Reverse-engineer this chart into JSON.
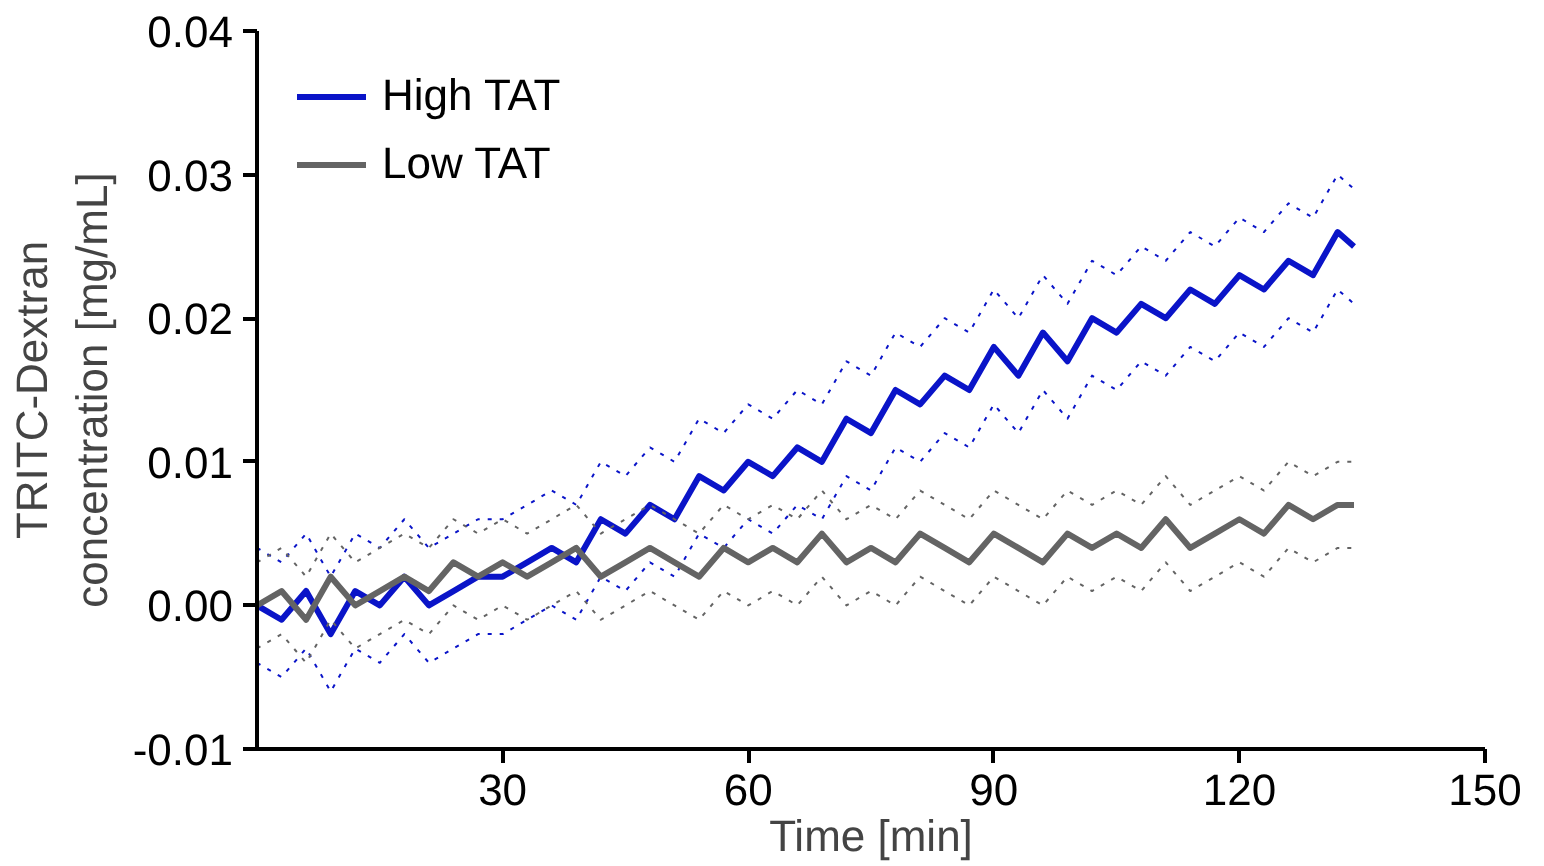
{
  "chart_data": {
    "type": "line",
    "xlabel": "Time [min]",
    "ylabel": "TRITC-Dextran\nconcentration [mg/mL]",
    "xlim": [
      0,
      150
    ],
    "xticks": [
      30,
      60,
      90,
      120,
      150
    ],
    "ylim": [
      -0.01,
      0.04
    ],
    "yticks": [
      {
        "value": -0.01,
        "label": "-0.01"
      },
      {
        "value": 0,
        "label": "0.00"
      },
      0.01,
      0.02,
      0.03,
      0.04
    ],
    "grid": false,
    "legend": "top left",
    "line_style": "solid",
    "marker": "none",
    "x": [
      0,
      3,
      6,
      9,
      12,
      15,
      18,
      21,
      24,
      27,
      30,
      33,
      36,
      39,
      42,
      45,
      48,
      51,
      54,
      57,
      60,
      63,
      66,
      69,
      72,
      75,
      78,
      81,
      84,
      87,
      90,
      93,
      96,
      99,
      102,
      105,
      108,
      111,
      114,
      117,
      120,
      123,
      126,
      129,
      132,
      134
    ],
    "series": [
      {
        "name": "High TAT",
        "color": "#0a14c8",
        "values": [
          0.0,
          -0.001,
          0.001,
          -0.002,
          0.001,
          0.0,
          0.002,
          0.0,
          0.001,
          0.002,
          0.002,
          0.003,
          0.004,
          0.003,
          0.006,
          0.005,
          0.007,
          0.006,
          0.009,
          0.008,
          0.01,
          0.009,
          0.011,
          0.01,
          0.013,
          0.012,
          0.015,
          0.014,
          0.016,
          0.015,
          0.018,
          0.016,
          0.019,
          0.017,
          0.02,
          0.019,
          0.021,
          0.02,
          0.022,
          0.021,
          0.023,
          0.022,
          0.024,
          0.023,
          0.026,
          0.025
        ]
      },
      {
        "color": "#0a14c8",
        "line_style": "dotted",
        "values": [
          0.004,
          0.003,
          0.005,
          0.002,
          0.005,
          0.004,
          0.006,
          0.004,
          0.005,
          0.006,
          0.006,
          0.007,
          0.008,
          0.007,
          0.01,
          0.009,
          0.011,
          0.01,
          0.013,
          0.012,
          0.014,
          0.013,
          0.015,
          0.014,
          0.017,
          0.016,
          0.019,
          0.018,
          0.02,
          0.019,
          0.022,
          0.02,
          0.023,
          0.021,
          0.024,
          0.023,
          0.025,
          0.024,
          0.026,
          0.025,
          0.027,
          0.026,
          0.028,
          0.027,
          0.03,
          0.029
        ]
      },
      {
        "color": "#0a14c8",
        "line_style": "dotted",
        "values": [
          -0.004,
          -0.005,
          -0.003,
          -0.006,
          -0.003,
          -0.004,
          -0.002,
          -0.004,
          -0.003,
          -0.002,
          -0.002,
          -0.001,
          0.0,
          -0.001,
          0.002,
          0.001,
          0.003,
          0.002,
          0.005,
          0.004,
          0.006,
          0.005,
          0.007,
          0.006,
          0.009,
          0.008,
          0.011,
          0.01,
          0.012,
          0.011,
          0.014,
          0.012,
          0.015,
          0.013,
          0.016,
          0.015,
          0.017,
          0.016,
          0.018,
          0.017,
          0.019,
          0.018,
          0.02,
          0.019,
          0.022,
          0.021
        ]
      },
      {
        "name": "Low TAT",
        "color": "#646464",
        "values": [
          0.0,
          0.001,
          -0.001,
          0.002,
          0.0,
          0.001,
          0.002,
          0.001,
          0.003,
          0.002,
          0.003,
          0.002,
          0.003,
          0.004,
          0.002,
          0.003,
          0.004,
          0.003,
          0.002,
          0.004,
          0.003,
          0.004,
          0.003,
          0.005,
          0.003,
          0.004,
          0.003,
          0.005,
          0.004,
          0.003,
          0.005,
          0.004,
          0.003,
          0.005,
          0.004,
          0.005,
          0.004,
          0.006,
          0.004,
          0.005,
          0.006,
          0.005,
          0.007,
          0.006,
          0.007,
          0.007
        ]
      },
      {
        "color": "#646464",
        "line_style": "dotted",
        "values": [
          0.003,
          0.004,
          0.002,
          0.005,
          0.003,
          0.004,
          0.005,
          0.004,
          0.006,
          0.005,
          0.006,
          0.005,
          0.006,
          0.007,
          0.005,
          0.006,
          0.007,
          0.006,
          0.005,
          0.007,
          0.006,
          0.007,
          0.006,
          0.008,
          0.006,
          0.007,
          0.006,
          0.008,
          0.007,
          0.006,
          0.008,
          0.007,
          0.006,
          0.008,
          0.007,
          0.008,
          0.007,
          0.009,
          0.007,
          0.008,
          0.009,
          0.008,
          0.01,
          0.009,
          0.01,
          0.01
        ]
      },
      {
        "color": "#646464",
        "line_style": "dotted",
        "values": [
          -0.003,
          -0.002,
          -0.004,
          -0.001,
          -0.003,
          -0.002,
          -0.001,
          -0.002,
          0.0,
          -0.001,
          0.0,
          -0.001,
          0.0,
          0.001,
          -0.001,
          0.0,
          0.001,
          0.0,
          -0.001,
          0.001,
          0.0,
          0.001,
          0.0,
          0.002,
          0.0,
          0.001,
          0.0,
          0.002,
          0.001,
          0.0,
          0.002,
          0.001,
          0.0,
          0.002,
          0.001,
          0.002,
          0.001,
          0.003,
          0.001,
          0.002,
          0.003,
          0.002,
          0.004,
          0.003,
          0.004,
          0.004
        ]
      }
    ]
  }
}
